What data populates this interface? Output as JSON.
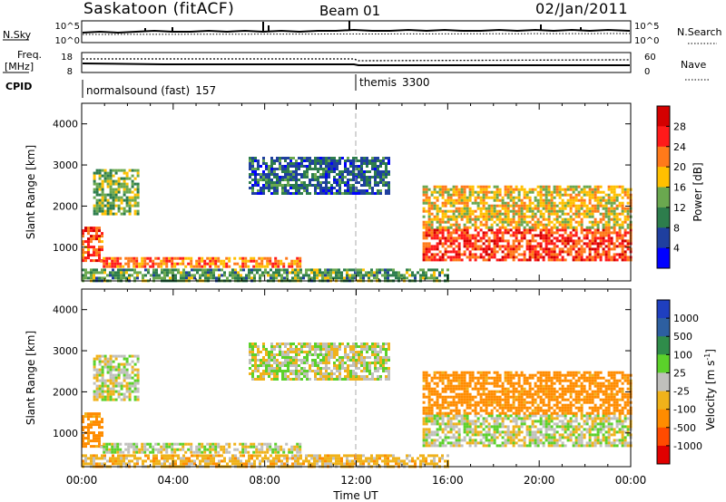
{
  "header": {
    "station": "Saskatoon (fitACF)",
    "beam": "Beam 01",
    "date": "02/Jan/2011"
  },
  "panel_sky": {
    "left_label": "N.Sky",
    "left_tick_top": "10^5",
    "left_tick_bottom": "10^0",
    "right_label": "N.Search",
    "right_tick_top": "10^5",
    "right_tick_bottom": "10^0"
  },
  "panel_freq": {
    "left_label_1": "Freq.",
    "left_label_2": "[MHz]",
    "left_tick_top": "18",
    "left_tick_bottom": "8",
    "right_label": "Nave",
    "right_tick_top": "60",
    "right_tick_bottom": "0"
  },
  "panel_cpid": {
    "label": "CPID",
    "programs": [
      {
        "name": "normalsound (fast)",
        "code": "157",
        "start_hour": 0
      },
      {
        "name": "themis",
        "code": "3300",
        "start_hour": 12
      }
    ]
  },
  "time_axis": {
    "label": "Time UT",
    "ticks": [
      "00:00",
      "04:00",
      "08:00",
      "12:00",
      "16:00",
      "20:00",
      "00:00"
    ]
  },
  "colorbar_power": {
    "title": "Power [dB]",
    "ticks": [
      "28",
      "24",
      "20",
      "16",
      "12",
      "8",
      "4"
    ],
    "colors": [
      "#d40000",
      "#ff1a1a",
      "#ff7a1a",
      "#ffc000",
      "#6aa84f",
      "#2d7d4c",
      "#1f3f9f",
      "#0000ff"
    ]
  },
  "colorbar_velocity": {
    "title": "Velocity [m s",
    "title_sup": "-1",
    "title_end": "]",
    "ticks": [
      "1000",
      "500",
      "100",
      "25",
      "-25",
      "-100",
      "-500",
      "-1000"
    ],
    "colors": [
      "#1f3fbf",
      "#2d5fa0",
      "#2f8c4a",
      "#5bd12a",
      "#c0c0bc",
      "#f0b21a",
      "#ff8c00",
      "#ff4b00",
      "#e00000"
    ]
  },
  "chart_data": [
    {
      "type": "heatmap",
      "title": "Power",
      "xlabel": "Time UT",
      "ylabel": "Slant Range [km]",
      "xlim": [
        0,
        24
      ],
      "ylim": [
        180,
        4500
      ],
      "yticks": [
        1000,
        2000,
        3000,
        4000
      ],
      "colorbar": "Power [dB]",
      "regions": [
        {
          "t": [
            0.0,
            0.9
          ],
          "range": [
            700,
            1500
          ],
          "power": 24
        },
        {
          "t": [
            0.5,
            2.5
          ],
          "range": [
            1800,
            2900
          ],
          "power": 14
        },
        {
          "t": [
            0.8,
            9.5
          ],
          "range": [
            520,
            760
          ],
          "power": 22
        },
        {
          "t": [
            0.0,
            16.0
          ],
          "range": [
            200,
            480
          ],
          "power": 12
        },
        {
          "t": [
            7.3,
            13.4
          ],
          "range": [
            2300,
            3200
          ],
          "power": 8
        },
        {
          "t": [
            14.9,
            24.0
          ],
          "range": [
            700,
            1450
          ],
          "power": 25
        },
        {
          "t": [
            14.9,
            24.0
          ],
          "range": [
            1450,
            2500
          ],
          "power": 18
        }
      ]
    },
    {
      "type": "heatmap",
      "title": "Velocity",
      "xlabel": "Time UT",
      "ylabel": "Slant Range [km]",
      "xlim": [
        0,
        24
      ],
      "ylim": [
        180,
        4500
      ],
      "yticks": [
        1000,
        2000,
        3000,
        4000
      ],
      "colorbar": "Velocity [m s-1]",
      "regions": [
        {
          "t": [
            0.0,
            0.9
          ],
          "range": [
            700,
            1500
          ],
          "velocity": -150
        },
        {
          "t": [
            0.5,
            2.5
          ],
          "range": [
            1800,
            2900
          ],
          "velocity": 0
        },
        {
          "t": [
            0.8,
            9.5
          ],
          "range": [
            520,
            760
          ],
          "velocity": 0
        },
        {
          "t": [
            0.0,
            16.0
          ],
          "range": [
            200,
            480
          ],
          "velocity": -60
        },
        {
          "t": [
            7.3,
            13.4
          ],
          "range": [
            2300,
            3200
          ],
          "velocity": 0
        },
        {
          "t": [
            14.9,
            24.0
          ],
          "range": [
            700,
            1450
          ],
          "velocity": 0
        },
        {
          "t": [
            14.9,
            24.0
          ],
          "range": [
            1450,
            2500
          ],
          "velocity": -150
        }
      ]
    }
  ]
}
